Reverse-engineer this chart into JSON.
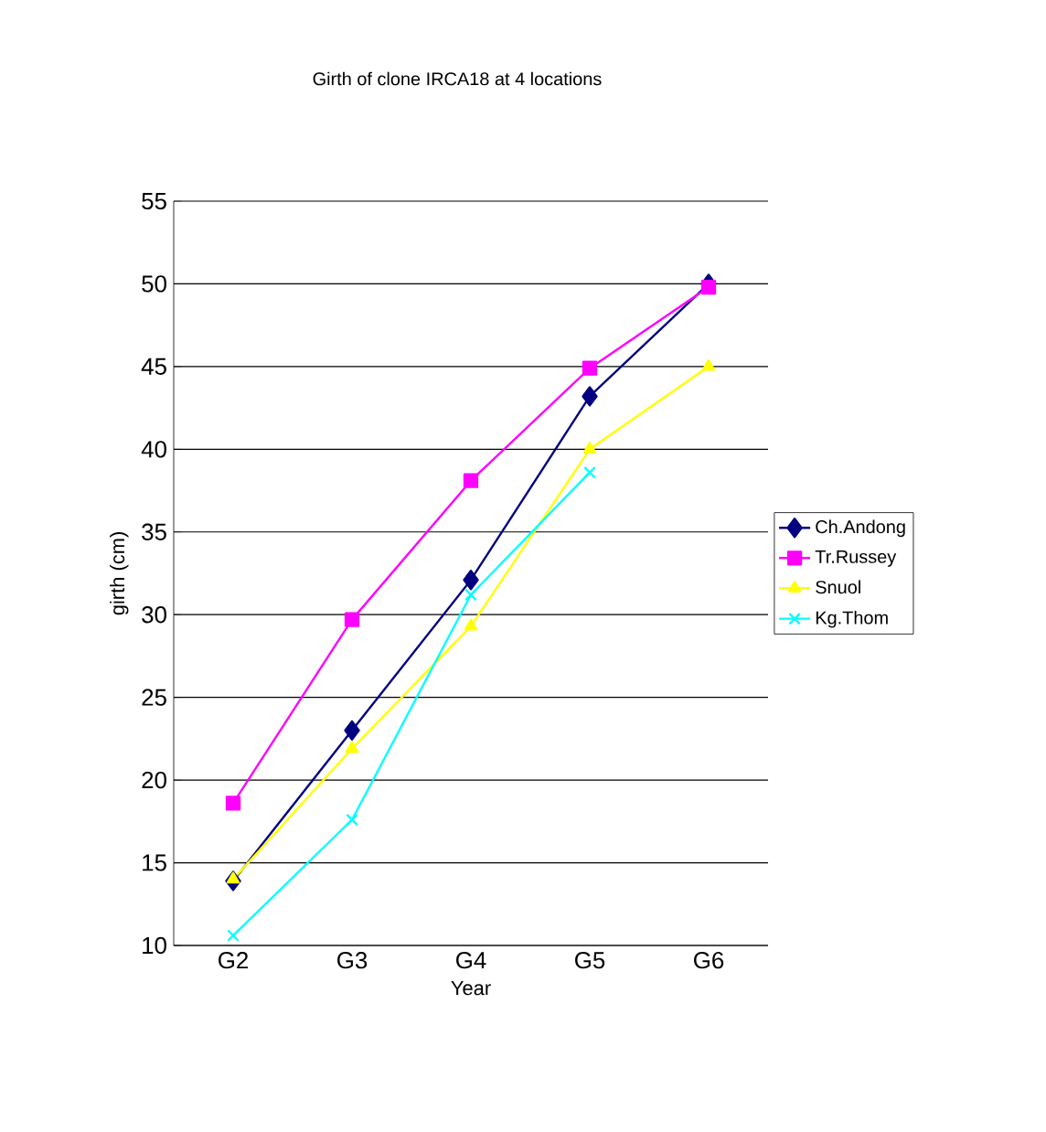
{
  "chart_data": {
    "type": "line",
    "title": "Girth of clone IRCA18 at 4 locations",
    "xlabel": "Year",
    "ylabel": "girth (cm)",
    "categories": [
      "G2",
      "G3",
      "G4",
      "G5",
      "G6"
    ],
    "series": [
      {
        "name": "Ch.Andong",
        "color": "#000080",
        "marker": "diamond",
        "values": [
          13.9,
          23.0,
          32.1,
          43.2,
          50.0
        ]
      },
      {
        "name": "Tr.Russey",
        "color": "#ff00ff",
        "marker": "square",
        "values": [
          18.6,
          29.7,
          38.1,
          44.9,
          49.8
        ]
      },
      {
        "name": "Snuol",
        "color": "#ffff00",
        "marker": "triangle",
        "values": [
          14.0,
          21.9,
          29.3,
          40.0,
          45.0
        ]
      },
      {
        "name": "Kg.Thom",
        "color": "#00ffff",
        "marker": "cross",
        "values": [
          10.6,
          17.6,
          31.2,
          38.6,
          null
        ]
      }
    ],
    "ylim": [
      10,
      55
    ],
    "yticks": [
      10,
      15,
      20,
      25,
      30,
      35,
      40,
      45,
      50,
      55
    ],
    "grid": "y",
    "legend": "right",
    "line_style": "solid"
  }
}
